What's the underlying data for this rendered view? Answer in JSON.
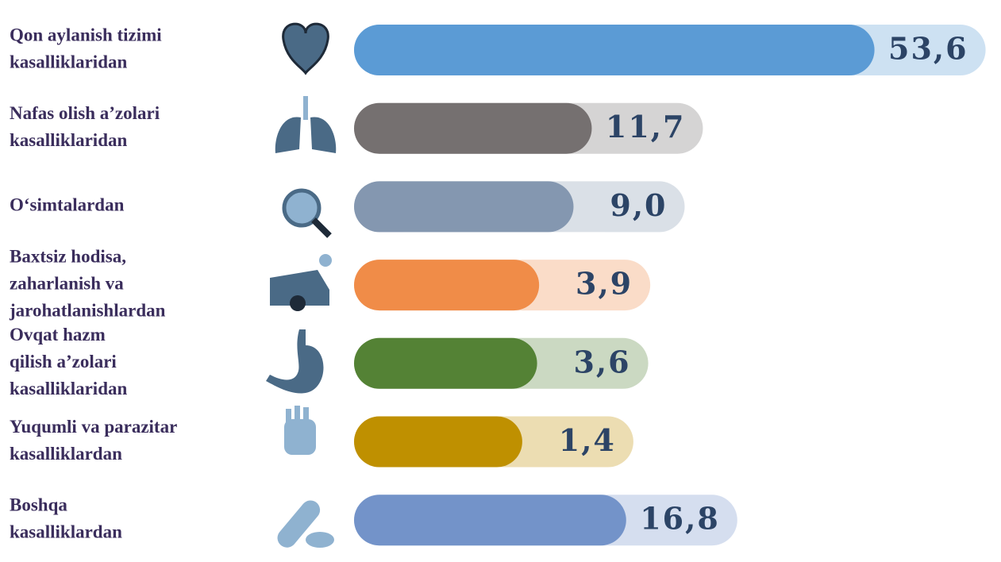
{
  "chart_data": {
    "type": "bar",
    "orientation": "horizontal",
    "categories": [
      [
        "Qon aylanish tizimi",
        "kasalliklaridan"
      ],
      [
        "Nafas olish a’zolari",
        "kasalliklaridan"
      ],
      [
        "O‘simtalardan"
      ],
      [
        "Baxtsiz hodisa,",
        "zaharlanish va",
        "jarohatlanishlardan"
      ],
      [
        "Ovqat hazm",
        "qilish a’zolari",
        "kasalliklaridan"
      ],
      [
        "Yuqumli va parazitar",
        "kasalliklardan"
      ],
      [
        "Boshqa",
        "kasalliklardan"
      ]
    ],
    "values": [
      53.6,
      11.7,
      9.0,
      3.9,
      3.6,
      1.4,
      16.8
    ],
    "value_labels": [
      "53,6",
      "11,7",
      "9,0",
      "3,9",
      "3,6",
      "1,4",
      "16,8"
    ],
    "colors": [
      "#5b9bd5",
      "#757070",
      "#8497b0",
      "#f08c48",
      "#548235",
      "#bf9000",
      "#7393c9"
    ]
  }
}
